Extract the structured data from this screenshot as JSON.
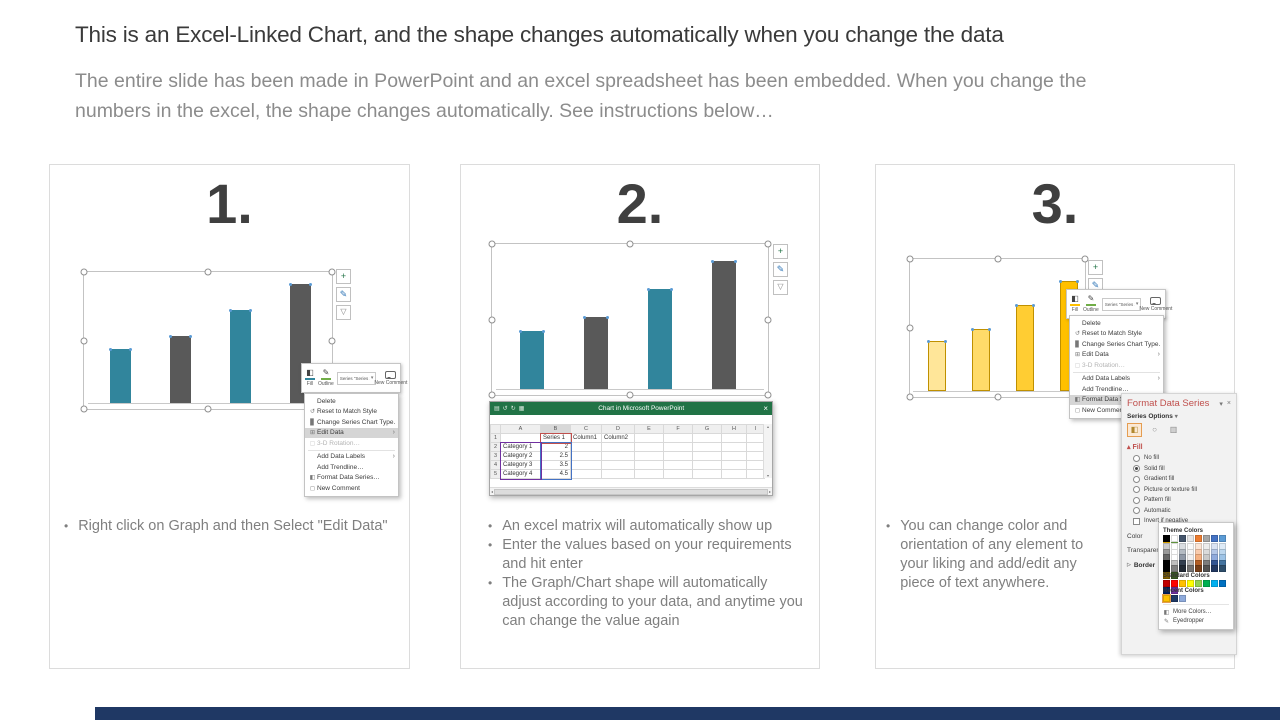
{
  "slide": {
    "title": "This is an Excel-Linked Chart, and the shape changes automatically when you change the data",
    "subtitle": "The entire slide has been made in PowerPoint and an excel spreadsheet has been embedded. When you change the numbers in the excel, the shape changes automatically. See instructions below…"
  },
  "steps": [
    {
      "number": "1.",
      "bullets": [
        "Right click on Graph and then Select \"Edit Data\""
      ]
    },
    {
      "number": "2.",
      "bullets": [
        "An excel matrix will automatically show up",
        "Enter the values based on your requirements and hit enter",
        "The Graph/Chart shape will automatically adjust according to your data, and anytime you can change the value again"
      ]
    },
    {
      "number": "3.",
      "bullets": [
        "You can change color and orientation of any element to your liking and add/edit any piece of text anywhere."
      ]
    }
  ],
  "chart_data": {
    "type": "bar",
    "categories": [
      "Category 1",
      "Category 2",
      "Category 3",
      "Category 4"
    ],
    "values": [
      2,
      2.5,
      3.5,
      4.5
    ],
    "series": [
      {
        "name": "Series 1",
        "values": [
          2,
          2.5,
          3.5,
          4.5
        ]
      }
    ],
    "title": "",
    "xlabel": "",
    "ylabel": "",
    "ylim": [
      0,
      5
    ]
  },
  "colors": {
    "teal": "#31859C",
    "gray": "#595959",
    "y1": "#FFE699",
    "y2": "#FFDB69",
    "y3": "#FFCD33",
    "y4": "#FFC000",
    "excel_green": "#217346",
    "pane_title": "#C0504D",
    "navy_bar": "#1F3864",
    "highlight": "#D5D5D5",
    "selection_orange": "#E59D51"
  },
  "icons": {
    "plus": "+",
    "brush": "✎",
    "funnel": "▽",
    "save": "▤",
    "undo": "↺",
    "redo": "↻",
    "sheet": "▦",
    "close": "×",
    "caret_down": "▾",
    "submenu_arrow": "›",
    "fill_triangle": "▴",
    "border_triangle": "▷",
    "more_colors": "◧",
    "eyedropper": "✎",
    "bucket": "◧",
    "effects": "○",
    "chart_bars": "▥"
  },
  "mini_toolbar": {
    "fill": "Fill",
    "outline": "Outline",
    "series": "Series \"Series 1\"",
    "new_comment": "New Comment"
  },
  "context_menu": {
    "items": [
      {
        "label": "Delete",
        "icon": ""
      },
      {
        "label": "Reset to Match Style",
        "icon": "↺"
      },
      {
        "label": "Change Series Chart Type…",
        "icon": "▊"
      },
      {
        "label": "Edit Data",
        "icon": "⊞"
      },
      {
        "label": "3-D Rotation…",
        "icon": "▢"
      },
      {
        "label": "Add Data Labels",
        "icon": ""
      },
      {
        "label": "Add Trendline…",
        "icon": ""
      },
      {
        "label": "Format Data Series…",
        "icon": "◧"
      },
      {
        "label": "New Comment",
        "icon": "◻"
      }
    ]
  },
  "excel": {
    "window_title": "Chart in Microsoft PowerPoint",
    "columns": [
      "A",
      "B",
      "C",
      "D",
      "E",
      "F",
      "G",
      "H",
      "I"
    ],
    "row_numbers": [
      "1",
      "2",
      "3",
      "4",
      "5"
    ],
    "header_row": {
      "b": "Series 1",
      "c": "Column1",
      "d": "Column2"
    },
    "data_rows": [
      [
        "Category 1",
        "2"
      ],
      [
        "Category 2",
        "2.5"
      ],
      [
        "Category 3",
        "3.5"
      ],
      [
        "Category 4",
        "4.5"
      ]
    ]
  },
  "format_pane": {
    "title": "Format Data Series",
    "series_options": "Series Options",
    "fill_header": "Fill",
    "fill_options": [
      "No fill",
      "Solid fill",
      "Gradient fill",
      "Picture or texture fill",
      "Pattern fill",
      "Automatic"
    ],
    "selected_fill": "Solid fill",
    "invert": "Invert if negative",
    "color_label": "Color",
    "transparency_label": "Transparency",
    "border_label": "Border",
    "popup": {
      "theme_header": "Theme Colors",
      "standard_header": "Standard Colors",
      "recent_header": "Recent Colors",
      "more": "More Colors…",
      "eyedropper": "Eyedropper"
    }
  },
  "palette": {
    "theme": [
      "#000000",
      "#FFFFFF",
      "#44546A",
      "#E7E6E6",
      "#ED7D31",
      "#A5A5A5",
      "#4472C4",
      "#5B9BD5",
      "#FFC000",
      "#70AD47"
    ],
    "standard": [
      "#C00000",
      "#FF0000",
      "#FFC000",
      "#FFFF00",
      "#92D050",
      "#00B050",
      "#00B0F0",
      "#0070C0",
      "#002060",
      "#7030A0"
    ],
    "recent": [
      "#FFC000",
      "#1F3864",
      "#8EAADB"
    ]
  }
}
